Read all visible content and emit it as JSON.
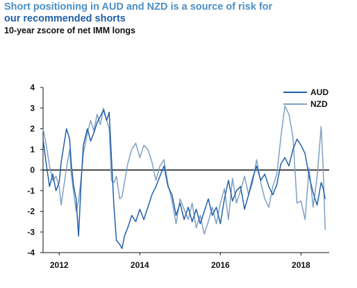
{
  "title_line1": "Short positioning in AUD and NZD is a source of risk for",
  "title_line2": "our recommended shorts",
  "subtitle": "10-year zscore of net IMM longs",
  "colors": {
    "title_light": "#4a8fc7",
    "title_dark": "#1f5fa8",
    "aud": "#2260a8",
    "nzd": "#7f9fc4",
    "zero_line": "#111111"
  },
  "chart_data": {
    "type": "line",
    "ylim": [
      -4,
      4
    ],
    "xlim": [
      2011.6,
      2018.7
    ],
    "yticks": [
      "4",
      "3",
      "2",
      "1",
      "0",
      "-1",
      "-2",
      "-3",
      "-4"
    ],
    "xticks": [
      "2012",
      "2014",
      "2016",
      "2018"
    ],
    "legend_position": "top-right",
    "series": [
      {
        "name": "AUD",
        "x": [
          2011.6,
          2011.68,
          2011.76,
          2011.84,
          2011.92,
          2012.0,
          2012.05,
          2012.1,
          2012.18,
          2012.26,
          2012.3,
          2012.36,
          2012.42,
          2012.48,
          2012.55,
          2012.6,
          2012.7,
          2012.78,
          2012.86,
          2012.94,
          2013.02,
          2013.1,
          2013.18,
          2013.24,
          2013.3,
          2013.36,
          2013.42,
          2013.5,
          2013.56,
          2013.62,
          2013.7,
          2013.8,
          2013.9,
          2014.0,
          2014.1,
          2014.2,
          2014.3,
          2014.4,
          2014.5,
          2014.6,
          2014.7,
          2014.8,
          2014.9,
          2015.0,
          2015.1,
          2015.2,
          2015.3,
          2015.4,
          2015.5,
          2015.6,
          2015.7,
          2015.8,
          2015.9,
          2016.0,
          2016.1,
          2016.2,
          2016.3,
          2016.4,
          2016.5,
          2016.6,
          2016.7,
          2016.8,
          2016.9,
          2017.0,
          2017.1,
          2017.2,
          2017.3,
          2017.4,
          2017.5,
          2017.6,
          2017.7,
          2017.8,
          2017.9,
          2018.0,
          2018.1,
          2018.2,
          2018.3,
          2018.4,
          2018.5,
          2018.55,
          2018.6
        ],
        "values": [
          1.5,
          0.3,
          -0.8,
          -0.2,
          -1.0,
          -0.6,
          0.4,
          1.0,
          2.0,
          1.5,
          0.3,
          -0.8,
          -1.4,
          -3.2,
          -0.4,
          1.2,
          2.0,
          1.4,
          1.8,
          2.3,
          2.6,
          2.9,
          2.4,
          2.8,
          0.5,
          -1.8,
          -3.4,
          -3.6,
          -3.8,
          -3.2,
          -2.8,
          -2.2,
          -2.5,
          -1.9,
          -2.4,
          -1.8,
          -1.2,
          -0.8,
          -0.3,
          0.2,
          -0.8,
          -1.2,
          -2.2,
          -1.6,
          -2.4,
          -1.8,
          -2.5,
          -1.9,
          -2.6,
          -2.0,
          -1.4,
          -2.2,
          -1.8,
          -2.6,
          -1.4,
          -0.5,
          -1.5,
          -1.0,
          -0.8,
          -1.9,
          -1.2,
          -0.4,
          0.2,
          -0.5,
          -0.2,
          -0.8,
          -1.2,
          -0.7,
          0.3,
          0.6,
          0.2,
          1.0,
          1.5,
          1.2,
          0.8,
          -0.3,
          -1.1,
          -1.7,
          -0.6,
          -0.9,
          -1.4
        ]
      },
      {
        "name": "NZD",
        "x": [
          2011.6,
          2011.68,
          2011.76,
          2011.84,
          2011.92,
          2012.0,
          2012.05,
          2012.1,
          2012.18,
          2012.26,
          2012.3,
          2012.36,
          2012.42,
          2012.48,
          2012.55,
          2012.6,
          2012.7,
          2012.78,
          2012.86,
          2012.94,
          2013.02,
          2013.1,
          2013.18,
          2013.24,
          2013.3,
          2013.36,
          2013.42,
          2013.5,
          2013.56,
          2013.62,
          2013.7,
          2013.8,
          2013.9,
          2014.0,
          2014.1,
          2014.2,
          2014.3,
          2014.4,
          2014.5,
          2014.6,
          2014.7,
          2014.8,
          2014.9,
          2015.0,
          2015.1,
          2015.2,
          2015.3,
          2015.4,
          2015.5,
          2015.6,
          2015.7,
          2015.8,
          2015.9,
          2016.0,
          2016.1,
          2016.2,
          2016.3,
          2016.4,
          2016.5,
          2016.6,
          2016.7,
          2016.8,
          2016.9,
          2017.0,
          2017.1,
          2017.2,
          2017.3,
          2017.4,
          2017.5,
          2017.6,
          2017.7,
          2017.8,
          2017.9,
          2018.0,
          2018.1,
          2018.2,
          2018.3,
          2018.4,
          2018.5,
          2018.55,
          2018.6
        ],
        "values": [
          2.0,
          1.2,
          0.2,
          -0.5,
          -0.3,
          -0.8,
          -1.7,
          -1.0,
          0.1,
          1.0,
          -0.2,
          -1.1,
          -2.0,
          -1.5,
          -0.3,
          0.8,
          1.8,
          2.4,
          1.9,
          2.7,
          2.2,
          3.0,
          2.4,
          2.0,
          -0.5,
          -0.6,
          -0.3,
          -1.4,
          -1.3,
          -0.6,
          0.3,
          1.0,
          1.3,
          0.6,
          1.2,
          1.0,
          0.4,
          -0.5,
          0.2,
          0.5,
          -0.7,
          -1.5,
          -2.6,
          -1.4,
          -1.9,
          -2.4,
          -1.6,
          -2.8,
          -2.2,
          -3.1,
          -2.5,
          -1.8,
          -2.6,
          -1.6,
          -0.9,
          -2.4,
          -0.4,
          -1.6,
          -1.0,
          -0.3,
          -1.2,
          -0.6,
          0.5,
          -0.6,
          -1.4,
          -1.8,
          -0.8,
          -0.2,
          1.6,
          3.1,
          2.7,
          1.6,
          -1.6,
          -1.5,
          -2.4,
          0.1,
          -1.8,
          -0.3,
          2.1,
          0.1,
          -2.9
        ]
      }
    ]
  }
}
